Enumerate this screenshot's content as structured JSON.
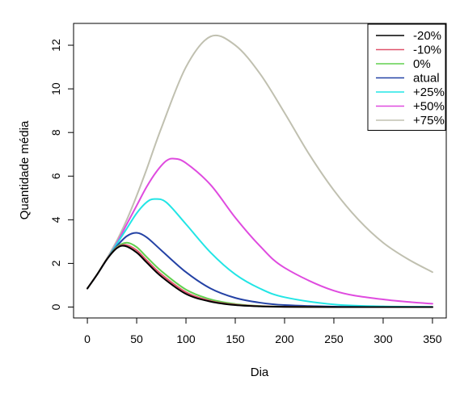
{
  "chart_data": {
    "type": "line",
    "title": "",
    "xlabel": "Dia",
    "ylabel": "Quantidade média",
    "xlim": [
      -14,
      364
    ],
    "ylim": [
      -0.5,
      13.0
    ],
    "xticks": [
      0,
      50,
      100,
      150,
      200,
      250,
      300,
      350
    ],
    "yticks": [
      0,
      2,
      4,
      6,
      8,
      10,
      12
    ],
    "grid": false,
    "legend_position": "top-right",
    "series": [
      {
        "name": "-20%",
        "color": "#000000",
        "x": [
          0,
          10,
          20,
          30,
          38,
          50,
          60,
          75,
          100,
          125,
          150,
          175,
          200,
          250,
          300,
          350
        ],
        "y": [
          0.85,
          1.5,
          2.2,
          2.7,
          2.8,
          2.5,
          2.05,
          1.4,
          0.6,
          0.25,
          0.09,
          0.03,
          0.01,
          0.0,
          0.0,
          0.0
        ]
      },
      {
        "name": "-10%",
        "color": "#DF536B",
        "x": [
          0,
          10,
          20,
          30,
          39,
          50,
          60,
          75,
          100,
          125,
          150,
          175,
          200,
          250,
          300,
          350
        ],
        "y": [
          0.85,
          1.5,
          2.2,
          2.72,
          2.85,
          2.6,
          2.15,
          1.5,
          0.68,
          0.28,
          0.11,
          0.04,
          0.015,
          0.0,
          0.0,
          0.0
        ]
      },
      {
        "name": "0%",
        "color": "#61D04F",
        "x": [
          0,
          10,
          20,
          30,
          40,
          50,
          60,
          75,
          100,
          125,
          150,
          175,
          200,
          250,
          300,
          350
        ],
        "y": [
          0.85,
          1.5,
          2.2,
          2.75,
          2.95,
          2.75,
          2.3,
          1.65,
          0.8,
          0.35,
          0.14,
          0.05,
          0.02,
          0.0,
          0.0,
          0.0
        ]
      },
      {
        "name": "atual",
        "color": "#2442A5",
        "x": [
          0,
          10,
          20,
          30,
          40,
          50,
          60,
          75,
          100,
          125,
          150,
          175,
          200,
          250,
          300,
          350
        ],
        "y": [
          0.85,
          1.5,
          2.2,
          2.8,
          3.25,
          3.4,
          3.2,
          2.6,
          1.6,
          0.85,
          0.42,
          0.2,
          0.09,
          0.02,
          0.0,
          0.0
        ]
      },
      {
        "name": "+25%",
        "color": "#22E5E5",
        "x": [
          0,
          10,
          20,
          30,
          40,
          50,
          60,
          68,
          80,
          100,
          125,
          150,
          175,
          200,
          250,
          300,
          350
        ],
        "y": [
          0.85,
          1.5,
          2.2,
          2.9,
          3.6,
          4.3,
          4.8,
          4.95,
          4.8,
          3.8,
          2.5,
          1.5,
          0.85,
          0.45,
          0.12,
          0.03,
          0.01
        ]
      },
      {
        "name": "+50%",
        "color": "#DF4BDF",
        "x": [
          0,
          10,
          20,
          30,
          40,
          50,
          60,
          70,
          80,
          88,
          100,
          125,
          150,
          175,
          200,
          250,
          300,
          350
        ],
        "y": [
          0.85,
          1.5,
          2.2,
          2.95,
          3.8,
          4.65,
          5.5,
          6.2,
          6.7,
          6.8,
          6.6,
          5.6,
          4.1,
          2.8,
          1.8,
          0.75,
          0.35,
          0.15
        ]
      },
      {
        "name": "+75%",
        "color": "#C0C0B0",
        "x": [
          0,
          10,
          20,
          30,
          40,
          50,
          60,
          75,
          100,
          125,
          150,
          175,
          200,
          225,
          250,
          275,
          300,
          325,
          350
        ],
        "y": [
          0.85,
          1.5,
          2.25,
          3.05,
          4.0,
          5.1,
          6.3,
          8.2,
          11.0,
          12.4,
          12.0,
          10.7,
          8.9,
          7.0,
          5.35,
          4.0,
          2.95,
          2.2,
          1.6
        ]
      }
    ]
  }
}
